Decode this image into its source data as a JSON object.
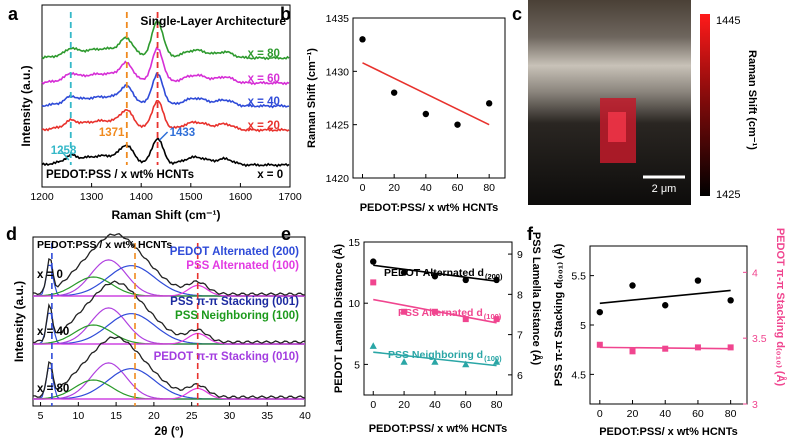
{
  "chart_data": [
    {
      "panel": "a",
      "type": "line",
      "xlabel": "Raman Shift (cm⁻¹)",
      "ylabel": "Intensity (a.u.)",
      "xlim": [
        1200,
        1700
      ],
      "xticks": [
        1200,
        1300,
        1400,
        1500,
        1600,
        1700
      ],
      "title": "Single-Layer Architecture",
      "series_prefix": "PEDOT:PSS / x wt% HCNTs",
      "series": [
        {
          "name": "x = 0",
          "color": "#000000",
          "offset": 0
        },
        {
          "name": "x = 20",
          "color": "#e8322d",
          "offset": 1
        },
        {
          "name": "x = 40",
          "color": "#2f4bd8",
          "offset": 2
        },
        {
          "name": "x = 60",
          "color": "#d62fd6",
          "offset": 3
        },
        {
          "name": "x = 80",
          "color": "#2e9a2e",
          "offset": 4
        }
      ],
      "peaks": [
        {
          "label": "1258",
          "x": 1258,
          "color": "#35b8c8"
        },
        {
          "label": "1371",
          "x": 1371,
          "color": "#f08a1e"
        },
        {
          "label": "1433",
          "x": 1433,
          "color": "#e8322d"
        }
      ],
      "peak_label_color_1433": "#2f6fd8"
    },
    {
      "panel": "b",
      "type": "scatter",
      "xlabel": "PEDOT:PSS/ x wt% HCNTs",
      "ylabel": "Raman Shift (cm⁻¹)",
      "xlim": [
        -6,
        90
      ],
      "ylim": [
        1420,
        1435
      ],
      "xticks": [
        0,
        20,
        40,
        60,
        80
      ],
      "yticks": [
        1420,
        1425,
        1430,
        1435
      ],
      "x": [
        0,
        20,
        40,
        60,
        80
      ],
      "y": [
        1433,
        1428,
        1426,
        1425,
        1427
      ],
      "fit": {
        "x": [
          0,
          80
        ],
        "y": [
          1430.8,
          1425.0
        ],
        "color": "#e8322d"
      }
    },
    {
      "panel": "c",
      "type": "heatmap",
      "colorbar_label": "Raman Shift (cm⁻¹)",
      "colorbar_range": [
        1425,
        1445
      ],
      "scalebar_label": "2 μm"
    },
    {
      "panel": "d",
      "type": "line",
      "xlabel": "2θ (°)",
      "ylabel": "Intensity (a.u.)",
      "xlim": [
        4,
        40
      ],
      "xticks": [
        5,
        10,
        15,
        20,
        25,
        30,
        35,
        40
      ],
      "title": "PEDOT:PSS / x wt% HCNTs",
      "traces": [
        {
          "name": "x = 0",
          "offset": 2
        },
        {
          "name": "x = 40",
          "offset": 1
        },
        {
          "name": "x = 80",
          "offset": 0
        }
      ],
      "vlines": [
        {
          "x": 6.5,
          "color": "#2f4bd8"
        },
        {
          "x": 17.5,
          "color": "#f08a1e"
        },
        {
          "x": 25.8,
          "color": "#e8322d"
        }
      ],
      "labels": [
        {
          "text": "PEDOT Alternated (200)",
          "color": "#2f4bd8"
        },
        {
          "text": "PSS Alternated (100)",
          "color": "#e23ae2"
        },
        {
          "text": "PSS π-π Stacking (001)",
          "color": "#1c2aa0"
        },
        {
          "text": "PSS Neighboring (100)",
          "color": "#1c9a1c"
        },
        {
          "text": "PEDOT π-π Stacking (010)",
          "color": "#a33de0"
        }
      ]
    },
    {
      "panel": "e",
      "type": "scatter",
      "xlabel": "PEDOT:PSS/ x wt% HCNTs",
      "ylabel": "PEDOT Lamella Distance (Å)",
      "ylabel_right": "PSS Lamella Distance (Å)",
      "xlim": [
        -6,
        90
      ],
      "ylim": [
        2.5,
        15
      ],
      "ylim_right": [
        5.5,
        9.3
      ],
      "xticks": [
        0,
        20,
        40,
        60,
        80
      ],
      "yticks": [
        5,
        10,
        15
      ],
      "yticks_right": [
        6,
        7,
        8,
        9
      ],
      "series": [
        {
          "name": "PEDOT Alternated d",
          "sub": "(200)",
          "color": "#000000",
          "marker": "circle",
          "x": [
            0,
            20,
            40,
            60,
            80
          ],
          "y": [
            13.4,
            12.5,
            12.2,
            11.9,
            11.9
          ],
          "fit": [
            13.1,
            11.8
          ]
        },
        {
          "name": "PSS Alternated d",
          "sub": "(100)",
          "color": "#f0458f",
          "marker": "square",
          "x": [
            0,
            20,
            40,
            60,
            80
          ],
          "y": [
            11.7,
            9.3,
            9.3,
            8.7,
            8.7
          ],
          "fit": [
            10.3,
            8.4
          ]
        },
        {
          "name": "PSS Neighboring d",
          "sub": "(100)",
          "color": "#2aa6a6",
          "marker": "triangle",
          "x": [
            0,
            20,
            40,
            60,
            80
          ],
          "y": [
            6.5,
            5.2,
            5.2,
            5.0,
            5.2
          ],
          "fit": [
            6.0,
            4.9
          ]
        }
      ]
    },
    {
      "panel": "f",
      "type": "scatter",
      "xlabel": "PEDOT:PSS/ x wt% HCNTs",
      "ylabel": "PSS π-π Stacking d₍₀₀₁₎ (Å)",
      "ylabel_right": "PEDOT π-π Stacking d₍₀₁₀₎ (Å)",
      "xlim": [
        -6,
        90
      ],
      "ylim": [
        4.2,
        5.8
      ],
      "ylim_right": [
        3.0,
        4.2
      ],
      "xticks": [
        0,
        20,
        40,
        60,
        80
      ],
      "yticks": [
        4.5,
        5.0,
        5.5
      ],
      "yticks_right": [
        3.0,
        3.5,
        4.0
      ],
      "series": [
        {
          "name": "PSS",
          "color": "#000000",
          "marker": "circle",
          "axis": "left",
          "x": [
            0,
            20,
            40,
            60,
            80
          ],
          "y": [
            5.13,
            5.4,
            5.2,
            5.45,
            5.25
          ],
          "fit": [
            5.22,
            5.35
          ]
        },
        {
          "name": "PEDOT",
          "color": "#f0458f",
          "marker": "square",
          "axis": "right",
          "x": [
            0,
            20,
            40,
            60,
            80
          ],
          "y": [
            3.45,
            3.4,
            3.42,
            3.43,
            3.43
          ],
          "fit": [
            3.43,
            3.42
          ]
        }
      ]
    }
  ],
  "panel_letters": [
    "a",
    "b",
    "c",
    "d",
    "e",
    "f"
  ]
}
